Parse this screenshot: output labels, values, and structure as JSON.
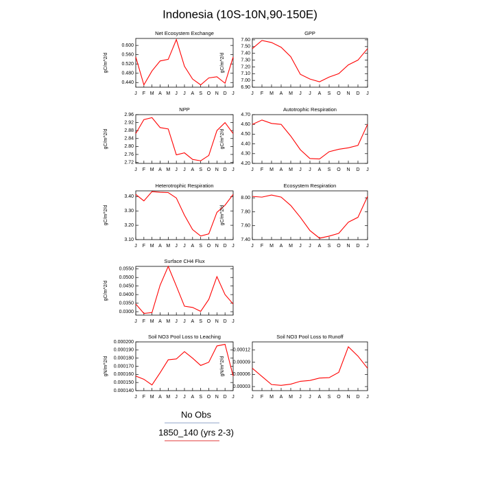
{
  "title": "Indonesia (10S-10N,90-150E)",
  "legend": [
    {
      "name": "No Obs",
      "color": "#8fa3c9"
    },
    {
      "name": "1850_140 (yrs 2-3)",
      "color": "#e03a3a"
    }
  ],
  "chart_data": [
    {
      "type": "line",
      "title": "Net Ecosystem Exchange",
      "ylabel": "gC/m^2/d",
      "color": "#ff0000",
      "categories": [
        "J",
        "F",
        "M",
        "A",
        "M",
        "J",
        "J",
        "A",
        "S",
        "O",
        "N",
        "D",
        "J"
      ],
      "values": [
        0.55,
        0.43,
        0.49,
        0.533,
        0.54,
        0.625,
        0.51,
        0.455,
        0.43,
        0.46,
        0.465,
        0.437,
        0.55
      ],
      "ylim": [
        0.42,
        0.63
      ],
      "yticks": [
        {
          "value": 0.44,
          "label": "0.440"
        },
        {
          "value": 0.48,
          "label": "0.480"
        },
        {
          "value": 0.52,
          "label": "0.520"
        },
        {
          "value": 0.56,
          "label": "0.560"
        },
        {
          "value": 0.6,
          "label": "0.600"
        }
      ]
    },
    {
      "type": "line",
      "title": "GPP",
      "ylabel": "gC/m^2/d",
      "color": "#ff0000",
      "categories": [
        "J",
        "F",
        "M",
        "A",
        "M",
        "J",
        "J",
        "A",
        "S",
        "O",
        "N",
        "D",
        "J"
      ],
      "values": [
        7.47,
        7.59,
        7.56,
        7.49,
        7.35,
        7.09,
        7.02,
        6.98,
        7.05,
        7.1,
        7.23,
        7.3,
        7.47
      ],
      "ylim": [
        6.9,
        7.62
      ],
      "yticks": [
        {
          "value": 6.9,
          "label": "6.90"
        },
        {
          "value": 7.0,
          "label": "7.00"
        },
        {
          "value": 7.1,
          "label": "7.10"
        },
        {
          "value": 7.2,
          "label": "7.20"
        },
        {
          "value": 7.3,
          "label": "7.30"
        },
        {
          "value": 7.4,
          "label": "7.40"
        },
        {
          "value": 7.5,
          "label": "7.50"
        },
        {
          "value": 7.6,
          "label": "7.60"
        }
      ]
    },
    {
      "type": "line",
      "title": "NPP",
      "ylabel": "gC/m^2/d",
      "color": "#ff0000",
      "categories": [
        "J",
        "F",
        "M",
        "A",
        "M",
        "J",
        "J",
        "A",
        "S",
        "O",
        "N",
        "D",
        "J"
      ],
      "values": [
        2.865,
        2.935,
        2.945,
        2.895,
        2.888,
        2.758,
        2.768,
        2.735,
        2.728,
        2.755,
        2.88,
        2.92,
        2.865
      ],
      "ylim": [
        2.715,
        2.96
      ],
      "yticks": [
        2.72,
        2.76,
        {
          "value": 2.8,
          "label": "2.80"
        },
        2.84,
        2.88,
        2.92,
        2.96
      ]
    },
    {
      "type": "line",
      "title": "Autotrophic Respiration",
      "ylabel": "gC/m^2/d",
      "color": "#ff0000",
      "categories": [
        "J",
        "F",
        "M",
        "A",
        "M",
        "J",
        "J",
        "A",
        "S",
        "O",
        "N",
        "D",
        "J"
      ],
      "values": [
        4.6,
        4.645,
        4.61,
        4.6,
        4.48,
        4.34,
        4.25,
        4.245,
        4.32,
        4.345,
        4.36,
        4.385,
        4.6
      ],
      "ylim": [
        4.2,
        4.7
      ],
      "yticks": [
        {
          "value": 4.2,
          "label": "4.20"
        },
        {
          "value": 4.3,
          "label": "4.30"
        },
        {
          "value": 4.4,
          "label": "4.40"
        },
        {
          "value": 4.5,
          "label": "4.50"
        },
        {
          "value": 4.6,
          "label": "4.60"
        },
        {
          "value": 4.7,
          "label": "4.70"
        }
      ]
    },
    {
      "type": "line",
      "title": "Heterotrophic Respiration",
      "ylabel": "gC/m^2/d",
      "color": "#ff0000",
      "categories": [
        "J",
        "F",
        "M",
        "A",
        "M",
        "J",
        "J",
        "A",
        "S",
        "O",
        "N",
        "D",
        "J"
      ],
      "values": [
        3.415,
        3.37,
        3.435,
        3.43,
        3.428,
        3.39,
        3.27,
        3.17,
        3.125,
        3.14,
        3.29,
        3.34,
        3.415
      ],
      "ylim": [
        3.1,
        3.44
      ],
      "yticks": [
        {
          "value": 3.1,
          "label": "3.10"
        },
        {
          "value": 3.2,
          "label": "3.20"
        },
        {
          "value": 3.3,
          "label": "3.30"
        },
        {
          "value": 3.4,
          "label": "3.40"
        }
      ]
    },
    {
      "type": "line",
      "title": "Ecosystem Respiration",
      "ylabel": "gC/m^2/d",
      "color": "#ff0000",
      "categories": [
        "J",
        "F",
        "M",
        "A",
        "M",
        "J",
        "J",
        "A",
        "S",
        "O",
        "N",
        "D",
        "J"
      ],
      "values": [
        8.02,
        8.01,
        8.04,
        8.01,
        7.89,
        7.72,
        7.53,
        7.42,
        7.45,
        7.49,
        7.65,
        7.72,
        8.02
      ],
      "ylim": [
        7.4,
        8.1
      ],
      "yticks": [
        {
          "value": 7.4,
          "label": "7.40"
        },
        {
          "value": 7.6,
          "label": "7.60"
        },
        {
          "value": 7.8,
          "label": "7.80"
        },
        {
          "value": 8.0,
          "label": "8.00"
        }
      ]
    },
    {
      "type": "line",
      "title": "Surface CH4 Flux",
      "ylabel": "gC/m^2/d",
      "color": "#ff0000",
      "categories": [
        "J",
        "F",
        "M",
        "A",
        "M",
        "J",
        "J",
        "A",
        "S",
        "O",
        "N",
        "D",
        "J"
      ],
      "values": [
        0.0345,
        0.029,
        0.0295,
        0.0455,
        0.0565,
        0.045,
        0.0332,
        0.0325,
        0.0302,
        0.0372,
        0.0505,
        0.04,
        0.0345
      ],
      "ylim": [
        0.028,
        0.0565
      ],
      "yticks": [
        {
          "value": 0.03,
          "label": "0.0300"
        },
        {
          "value": 0.035,
          "label": "0.0350"
        },
        {
          "value": 0.04,
          "label": "0.0400"
        },
        {
          "value": 0.045,
          "label": "0.0450"
        },
        {
          "value": 0.05,
          "label": "0.0500"
        },
        {
          "value": 0.055,
          "label": "0.0550"
        }
      ]
    },
    {
      "type": "line",
      "title": "Soil NO3 Pool Loss to Leaching",
      "ylabel": "gN/m^2/d",
      "color": "#ff0000",
      "categories": [
        "J",
        "F",
        "M",
        "A",
        "M",
        "J",
        "J",
        "A",
        "S",
        "O",
        "N",
        "D",
        "J"
      ],
      "values": [
        0.000158,
        0.000154,
        0.000147,
        0.000162,
        0.000178,
        0.000179,
        0.000188,
        0.00018,
        0.000171,
        0.000175,
        0.000195,
        0.000197,
        0.000158
      ],
      "ylim": [
        0.00014,
        0.0002
      ],
      "yticks": [
        {
          "value": 0.00014,
          "label": "0.000140"
        },
        {
          "value": 0.00015,
          "label": "0.000150"
        },
        {
          "value": 0.00016,
          "label": "0.000160"
        },
        {
          "value": 0.00017,
          "label": "0.000170"
        },
        {
          "value": 0.00018,
          "label": "0.000180"
        },
        {
          "value": 0.00019,
          "label": "0.000190"
        },
        {
          "value": 0.0002,
          "label": "0.000200"
        }
      ]
    },
    {
      "type": "line",
      "title": "Soil NO3 Pool Loss to Runoff",
      "ylabel": "gN/m^2/d",
      "color": "#ff0000",
      "categories": [
        "J",
        "F",
        "M",
        "A",
        "M",
        "J",
        "J",
        "A",
        "S",
        "O",
        "N",
        "D",
        "J"
      ],
      "values": [
        7.5e-05,
        5.5e-05,
        3.5e-05,
        3.3e-05,
        3.6e-05,
        4.3e-05,
        4.5e-05,
        5.1e-05,
        5.2e-05,
        6.5e-05,
        0.000128,
        0.000105,
        7.5e-05
      ],
      "ylim": [
        2e-05,
        0.00014
      ],
      "yticks": [
        3e-05,
        6e-05,
        9e-05,
        0.00012
      ]
    }
  ]
}
